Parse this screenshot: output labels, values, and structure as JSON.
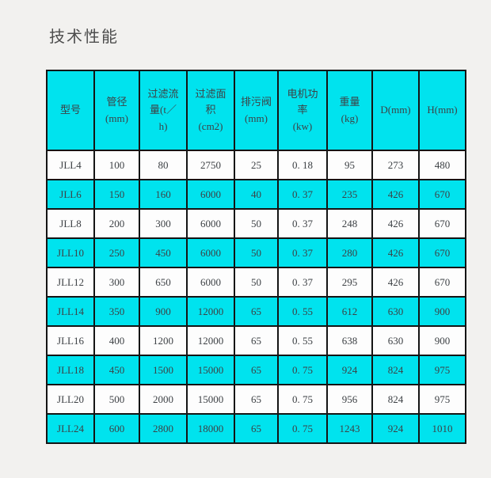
{
  "page": {
    "title": "技术性能",
    "background_color": "#f2f1ef"
  },
  "table": {
    "highlight_color": "#00e3ee",
    "row_color": "#fdfdfd",
    "border_color": "#141414",
    "columns": [
      {
        "label": "型号"
      },
      {
        "label": "管径\n(mm)"
      },
      {
        "label": "过滤流\n量(t／\nh)"
      },
      {
        "label": "过滤面\n积\n(cm2)"
      },
      {
        "label": "排污阀\n(mm)"
      },
      {
        "label": "电机功\n率\n(kw)"
      },
      {
        "label": "重量\n(kg)"
      },
      {
        "label": "D(mm)"
      },
      {
        "label": "H(mm)"
      }
    ],
    "rows": [
      {
        "highlight": false,
        "cells": [
          "JLL4",
          "100",
          "80",
          "2750",
          "25",
          "0. 18",
          "95",
          "273",
          "480"
        ]
      },
      {
        "highlight": true,
        "cells": [
          "JLL6",
          "150",
          "160",
          "6000",
          "40",
          "0. 37",
          "235",
          "426",
          "670"
        ]
      },
      {
        "highlight": false,
        "cells": [
          "JLL8",
          "200",
          "300",
          "6000",
          "50",
          "0. 37",
          "248",
          "426",
          "670"
        ]
      },
      {
        "highlight": true,
        "cells": [
          "JLL10",
          "250",
          "450",
          "6000",
          "50",
          "0. 37",
          "280",
          "426",
          "670"
        ]
      },
      {
        "highlight": false,
        "cells": [
          "JLL12",
          "300",
          "650",
          "6000",
          "50",
          "0. 37",
          "295",
          "426",
          "670"
        ]
      },
      {
        "highlight": true,
        "cells": [
          "JLL14",
          "350",
          "900",
          "12000",
          "65",
          "0. 55",
          "612",
          "630",
          "900"
        ]
      },
      {
        "highlight": false,
        "cells": [
          "JLL16",
          "400",
          "1200",
          "12000",
          "65",
          "0. 55",
          "638",
          "630",
          "900"
        ]
      },
      {
        "highlight": true,
        "cells": [
          "JLL18",
          "450",
          "1500",
          "15000",
          "65",
          "0. 75",
          "924",
          "824",
          "975"
        ]
      },
      {
        "highlight": false,
        "cells": [
          "JLL20",
          "500",
          "2000",
          "15000",
          "65",
          "0. 75",
          "956",
          "824",
          "975"
        ]
      },
      {
        "highlight": true,
        "cells": [
          "JLL24",
          "600",
          "2800",
          "18000",
          "65",
          "0. 75",
          "1243",
          "924",
          "1010"
        ]
      }
    ]
  },
  "chart_data": {
    "type": "table",
    "title": "技术性能",
    "columns": [
      "型号",
      "管径(mm)",
      "过滤流量(t／h)",
      "过滤面积(cm2)",
      "排污阀(mm)",
      "电机功率(kw)",
      "重量(kg)",
      "D(mm)",
      "H(mm)"
    ],
    "rows": [
      [
        "JLL4",
        100,
        80,
        2750,
        25,
        0.18,
        95,
        273,
        480
      ],
      [
        "JLL6",
        150,
        160,
        6000,
        40,
        0.37,
        235,
        426,
        670
      ],
      [
        "JLL8",
        200,
        300,
        6000,
        50,
        0.37,
        248,
        426,
        670
      ],
      [
        "JLL10",
        250,
        450,
        6000,
        50,
        0.37,
        280,
        426,
        670
      ],
      [
        "JLL12",
        300,
        650,
        6000,
        50,
        0.37,
        295,
        426,
        670
      ],
      [
        "JLL14",
        350,
        900,
        12000,
        65,
        0.55,
        612,
        630,
        900
      ],
      [
        "JLL16",
        400,
        1200,
        12000,
        65,
        0.55,
        638,
        630,
        900
      ],
      [
        "JLL18",
        450,
        1500,
        15000,
        65,
        0.75,
        924,
        824,
        975
      ],
      [
        "JLL20",
        500,
        2000,
        15000,
        65,
        0.75,
        956,
        824,
        975
      ],
      [
        "JLL24",
        600,
        2800,
        18000,
        65,
        0.75,
        1243,
        924,
        1010
      ]
    ]
  }
}
